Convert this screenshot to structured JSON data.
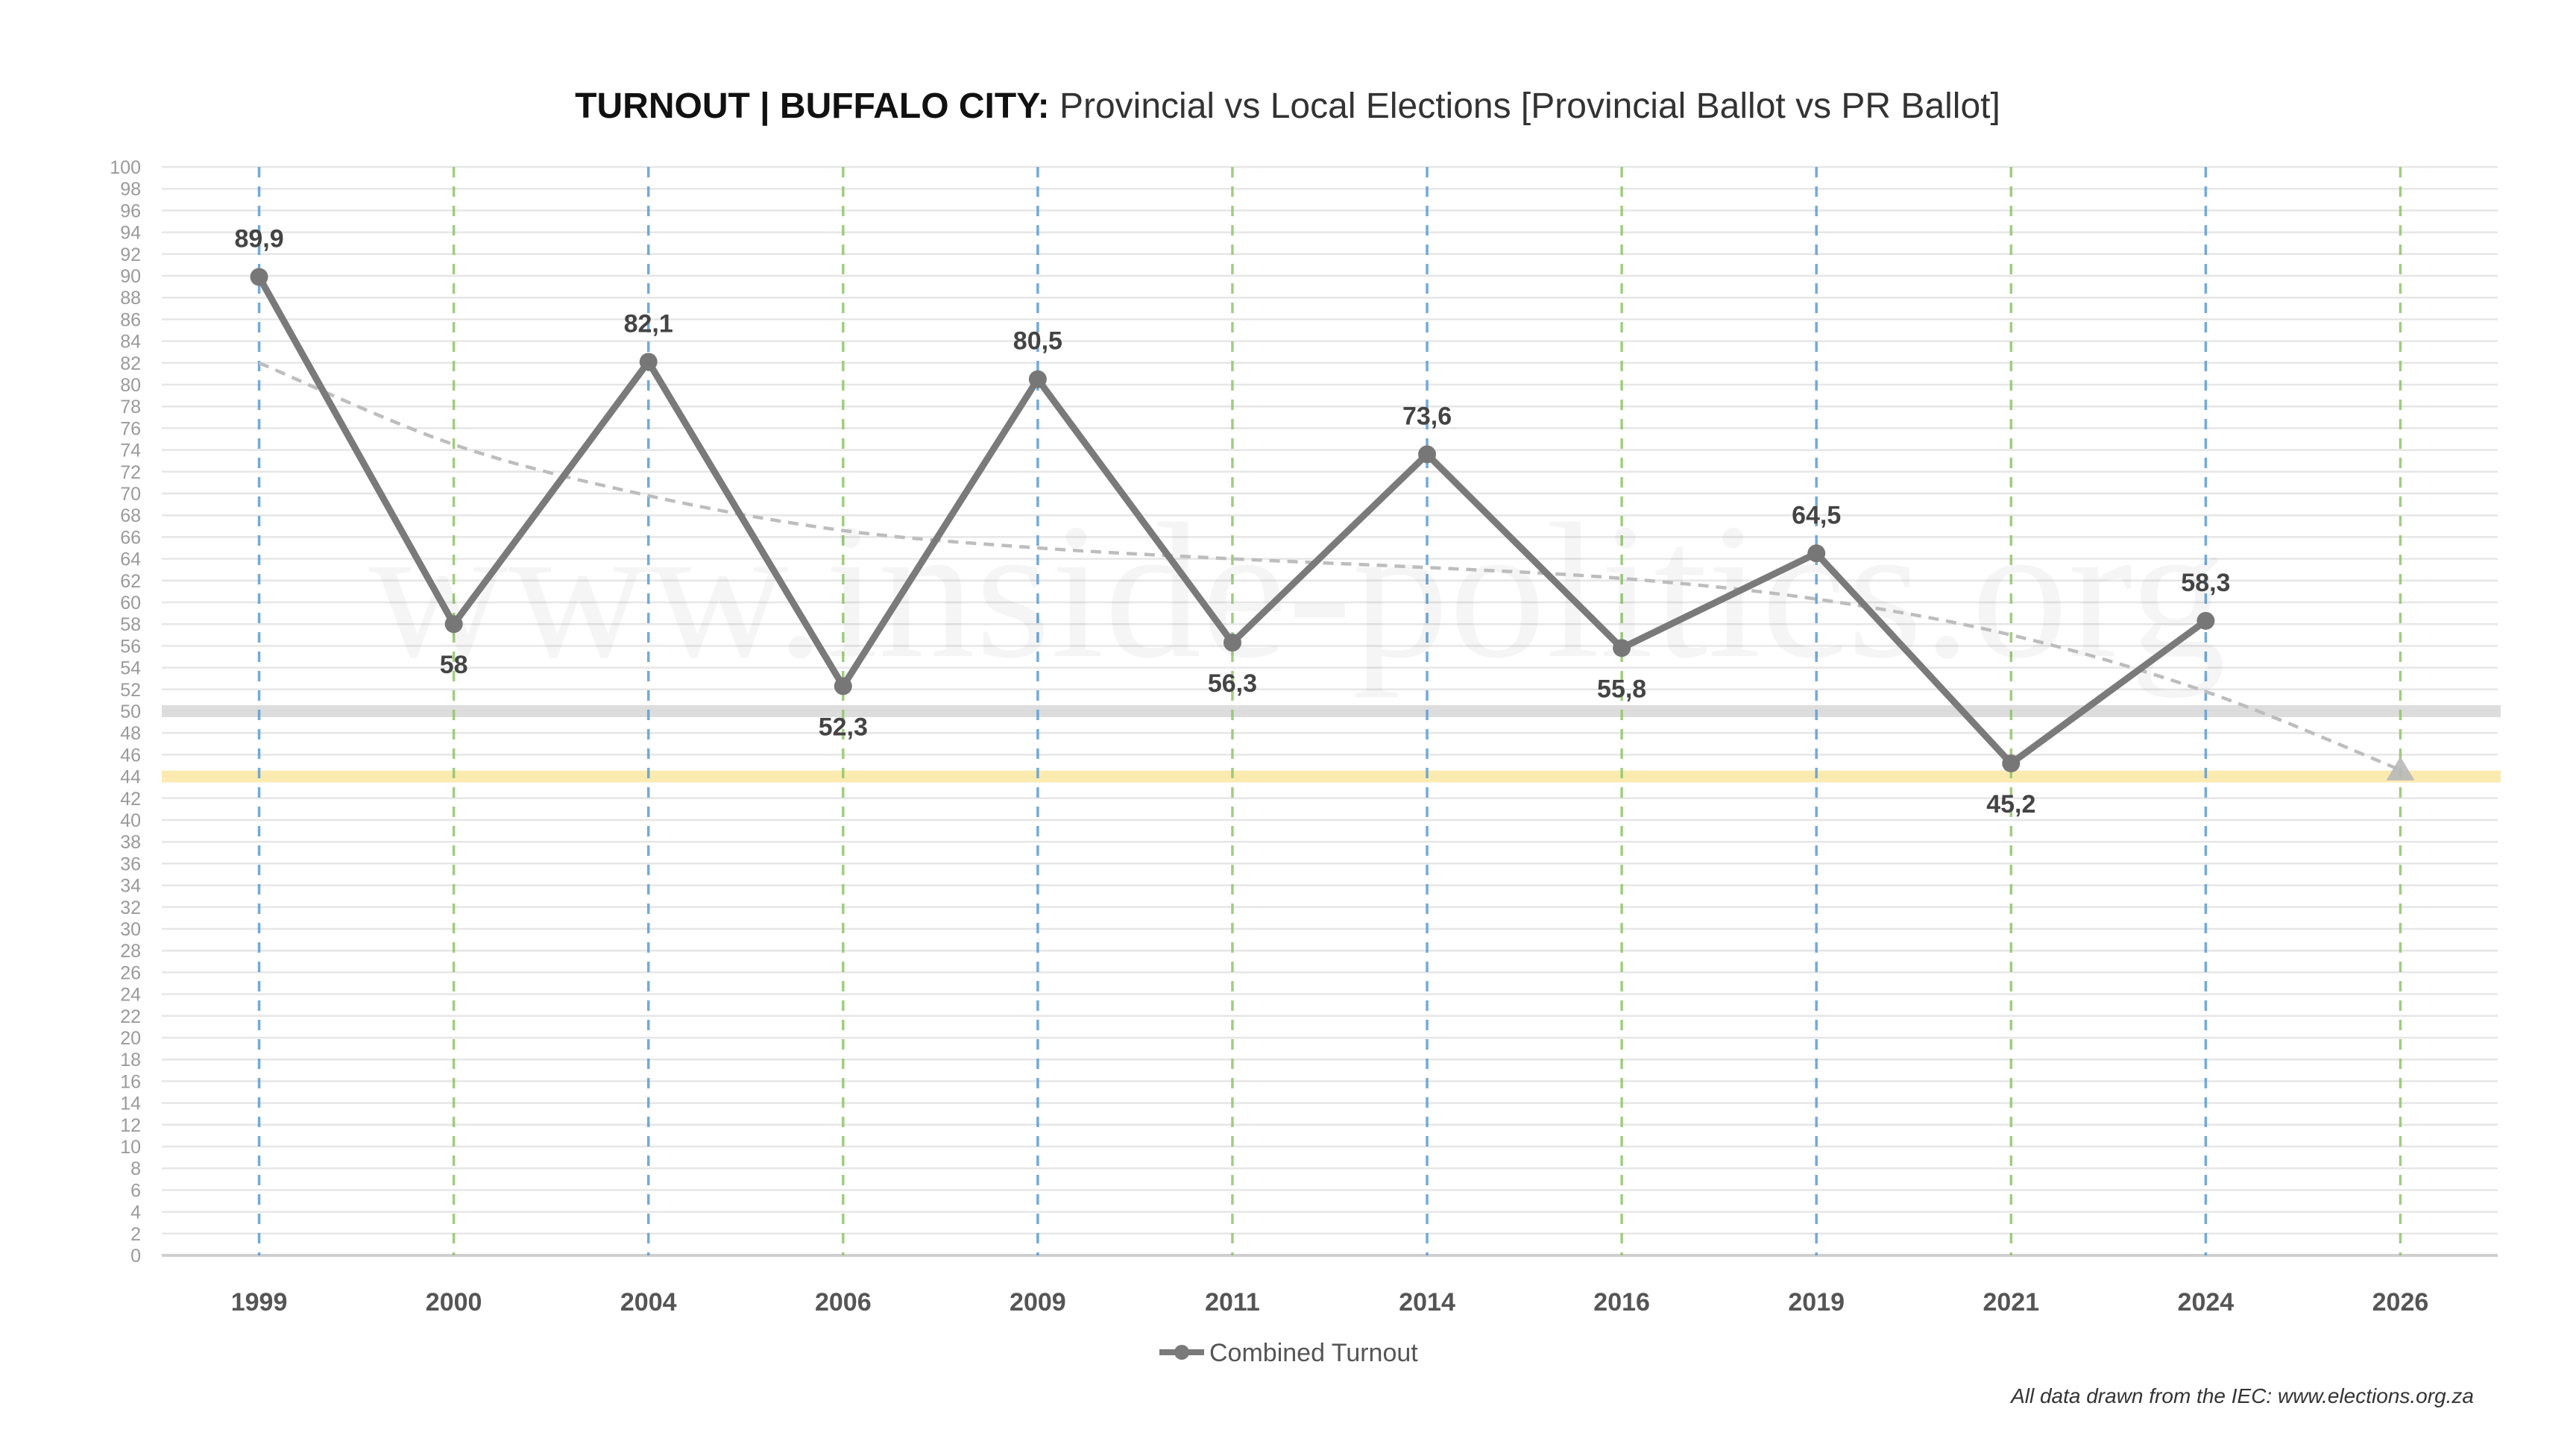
{
  "chart_data": {
    "type": "line",
    "title_bold": "TURNOUT | BUFFALO CITY:",
    "title_rest": " Provincial vs Local Elections [Provincial Ballot vs PR Ballot]",
    "categories": [
      "1999",
      "2000",
      "2004",
      "2006",
      "2009",
      "2011",
      "2014",
      "2016",
      "2019",
      "2021",
      "2024",
      "2026"
    ],
    "series": [
      {
        "name": "Combined Turnout",
        "color": "#7a7a7a",
        "values": [
          89.9,
          58,
          82.1,
          52.3,
          80.5,
          56.3,
          73.6,
          55.8,
          64.5,
          45.2,
          58.3,
          null
        ],
        "labels": [
          "89,9",
          "58",
          "82,1",
          "52,3",
          "80,5",
          "56,3",
          "73,6",
          "55,8",
          "64,5",
          "45,2",
          "58,3",
          ""
        ]
      }
    ],
    "trendline": {
      "style": "dashed",
      "color": "#bdbdbd",
      "values": [
        82,
        74.5,
        69.8,
        66.6,
        65,
        64,
        63.2,
        62.2,
        60.3,
        57,
        51.8,
        44.6
      ]
    },
    "reference_bands": [
      {
        "value": 50,
        "color": "#d9d9d9"
      },
      {
        "value": 44,
        "color": "#fbe9a8"
      }
    ],
    "vertical_gridlines": {
      "provincial_color": "#5b9bd5",
      "local_color": "#8fc46a",
      "kinds": [
        "provincial",
        "local",
        "provincial",
        "local",
        "provincial",
        "local",
        "provincial",
        "local",
        "provincial",
        "local",
        "provincial",
        "local"
      ]
    },
    "ylim": [
      0,
      100
    ],
    "ytick_step": 2,
    "grid": true,
    "legend": "bottom-center",
    "xlabel": "",
    "ylabel": ""
  },
  "watermark": "www.inside-politics.org",
  "source_note": "All data drawn from the IEC: www.elections.org.za"
}
